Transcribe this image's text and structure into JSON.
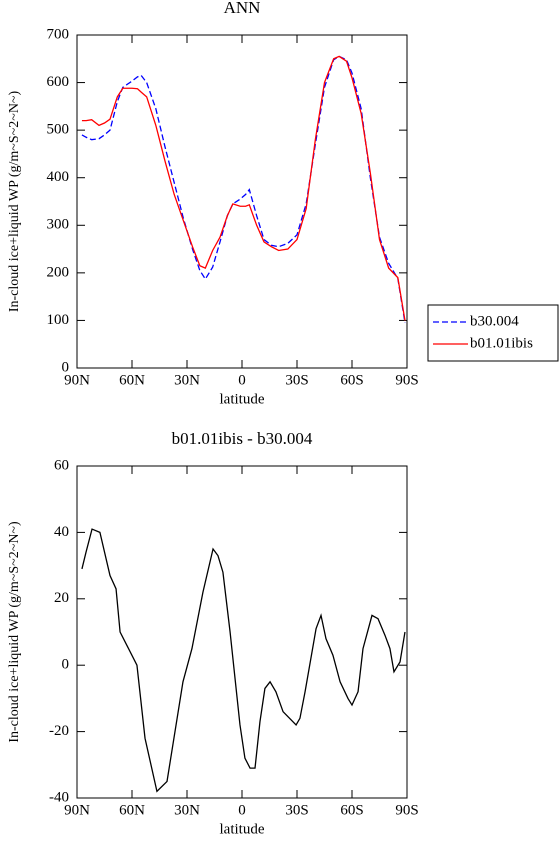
{
  "chart_data": [
    {
      "type": "line",
      "title": "ANN",
      "x_label": "latitude",
      "y_label": "In-cloud ice+liquid WP (g/m~S~2~N~)",
      "x": [
        87.3,
        85,
        82,
        78,
        75,
        72,
        68,
        65,
        60,
        57,
        55,
        52,
        47,
        42,
        37,
        32,
        27,
        23,
        20,
        16,
        12,
        8,
        5,
        1,
        -2,
        -4,
        -8,
        -12,
        -16,
        -20,
        -25,
        -30,
        -35,
        -40,
        -45,
        -50,
        -53,
        -57,
        -60,
        -65,
        -70,
        -75,
        -80,
        -85,
        -88.9
      ],
      "series": [
        {
          "name": "b30.004",
          "color": "#0000ff",
          "dash": true,
          "values": [
            490,
            485,
            480,
            482,
            490,
            500,
            560,
            590,
            603,
            612,
            615,
            600,
            545,
            465,
            390,
            315,
            250,
            205,
            187,
            212,
            265,
            320,
            345,
            355,
            365,
            375,
            320,
            270,
            258,
            255,
            262,
            280,
            345,
            470,
            590,
            648,
            655,
            648,
            620,
            545,
            400,
            275,
            220,
            188,
            95
          ]
        },
        {
          "name": "b01.01ibis",
          "color": "#ff0000",
          "dash": false,
          "values": [
            520,
            520,
            522,
            510,
            515,
            523,
            570,
            588,
            588,
            587,
            580,
            570,
            510,
            435,
            365,
            310,
            255,
            215,
            210,
            247,
            275,
            320,
            345,
            340,
            340,
            343,
            300,
            265,
            255,
            247,
            250,
            270,
            335,
            480,
            600,
            650,
            655,
            645,
            610,
            535,
            410,
            270,
            210,
            190,
            100
          ]
        }
      ],
      "xlim": [
        90,
        -90
      ],
      "xticks": [
        {
          "value": 90,
          "label": "90N"
        },
        {
          "value": 60,
          "label": "60N"
        },
        {
          "value": 30,
          "label": "30N"
        },
        0,
        {
          "value": -30,
          "label": "30S"
        },
        {
          "value": -60,
          "label": "60S"
        },
        {
          "value": -90,
          "label": "90S"
        }
      ],
      "ylim": [
        0,
        700
      ],
      "yticks": [
        0,
        100,
        200,
        300,
        400,
        500,
        600,
        700
      ],
      "legend": "outside-right"
    },
    {
      "type": "line",
      "title": "b01.01ibis - b30.004",
      "x_label": "latitude",
      "y_label": "In-cloud ice+liquid WP (g/m~S~2~N~)",
      "x": [
        87.3,
        85.1,
        81.8,
        77.5,
        72,
        68.7,
        66.5,
        57.3,
        52.9,
        46.4,
        40.9,
        32.2,
        27.3,
        21.3,
        15.8,
        13.1,
        10.4,
        6.5,
        1.1,
        -1.6,
        -4.4,
        -7.1,
        -9.8,
        -12.5,
        -15.3,
        -18.5,
        -22.4,
        -29.5,
        -31.6,
        -34.4,
        -40.4,
        -43.1,
        -45.8,
        -49.6,
        -53.5,
        -57.8,
        -60,
        -63.3,
        -66,
        -70.9,
        -74.2,
        -78,
        -80.7,
        -82.9,
        -86.2,
        -88.9
      ],
      "series": [
        {
          "color": "#000000",
          "dash": false,
          "values": [
            29,
            34,
            41,
            40,
            27,
            23,
            10,
            0,
            -22,
            -38,
            -35,
            -5,
            5,
            22,
            35,
            33,
            28,
            10,
            -18,
            -28,
            -31,
            -31,
            -17,
            -7,
            -5,
            -8,
            -14,
            -18,
            -16,
            -8,
            11,
            15,
            8,
            3,
            -5,
            -10,
            -12,
            -8,
            5,
            15,
            14,
            9,
            5,
            -2,
            1,
            10
          ]
        }
      ],
      "xlim": [
        90,
        -90
      ],
      "xticks": [
        {
          "value": 90,
          "label": "90N"
        },
        {
          "value": 60,
          "label": "60N"
        },
        {
          "value": 30,
          "label": "30N"
        },
        0,
        {
          "value": -30,
          "label": "30S"
        },
        {
          "value": -60,
          "label": "60S"
        },
        {
          "value": -90,
          "label": "90S"
        }
      ],
      "ylim": [
        -40,
        60
      ],
      "yticks": [
        -40,
        -20,
        0,
        20,
        40,
        60
      ]
    }
  ]
}
